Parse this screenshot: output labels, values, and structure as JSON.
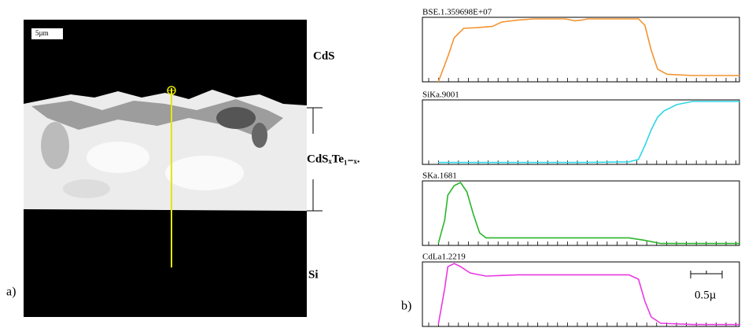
{
  "figure": {
    "panel_a": {
      "label": "a)",
      "scale": "5µm",
      "layers": [
        "CdS",
        "CdSₓTe₁₋ₓ.",
        "Si"
      ]
    },
    "panel_b": {
      "label": "b)",
      "scale": "0.5µ"
    }
  },
  "chart_data": [
    {
      "type": "line",
      "title": "BSE.1.359698E+07",
      "color": "#f39431",
      "xlim": [
        0,
        100
      ],
      "ylim": [
        0,
        100
      ],
      "x": [
        5,
        8,
        10,
        13,
        17,
        22,
        25,
        30,
        35,
        45,
        48,
        50,
        52,
        60,
        68,
        70,
        72,
        74,
        77,
        85,
        100
      ],
      "values": [
        0,
        40,
        70,
        85,
        86,
        88,
        95,
        98,
        100,
        100,
        97,
        98,
        100,
        100,
        100,
        90,
        50,
        20,
        12,
        10,
        10
      ]
    },
    {
      "type": "line",
      "title": "SiKa.9001",
      "color": "#2fd6e6",
      "xlim": [
        0,
        100
      ],
      "ylim": [
        0,
        100
      ],
      "x": [
        5,
        30,
        50,
        65,
        68,
        70,
        72,
        74,
        76,
        80,
        85,
        100
      ],
      "values": [
        3,
        3,
        3,
        4,
        8,
        30,
        55,
        75,
        85,
        95,
        100,
        100
      ]
    },
    {
      "type": "line",
      "title": "SKa.1681",
      "color": "#2bb52b",
      "xlim": [
        0,
        100
      ],
      "ylim": [
        0,
        100
      ],
      "x": [
        5,
        7,
        8,
        10,
        12,
        14,
        16,
        18,
        20,
        30,
        50,
        65,
        70,
        75,
        100
      ],
      "values": [
        3,
        40,
        80,
        95,
        100,
        85,
        50,
        20,
        12,
        12,
        12,
        12,
        8,
        3,
        3
      ]
    },
    {
      "type": "line",
      "title": "CdLa1.2219",
      "color": "#e83ae0",
      "xlim": [
        0,
        100
      ],
      "ylim": [
        0,
        100
      ],
      "x": [
        5,
        7,
        8,
        10,
        12,
        15,
        20,
        30,
        50,
        65,
        68,
        70,
        72,
        75,
        85,
        100
      ],
      "values": [
        3,
        60,
        95,
        100,
        95,
        85,
        80,
        82,
        82,
        82,
        75,
        40,
        15,
        5,
        3,
        3
      ]
    }
  ]
}
